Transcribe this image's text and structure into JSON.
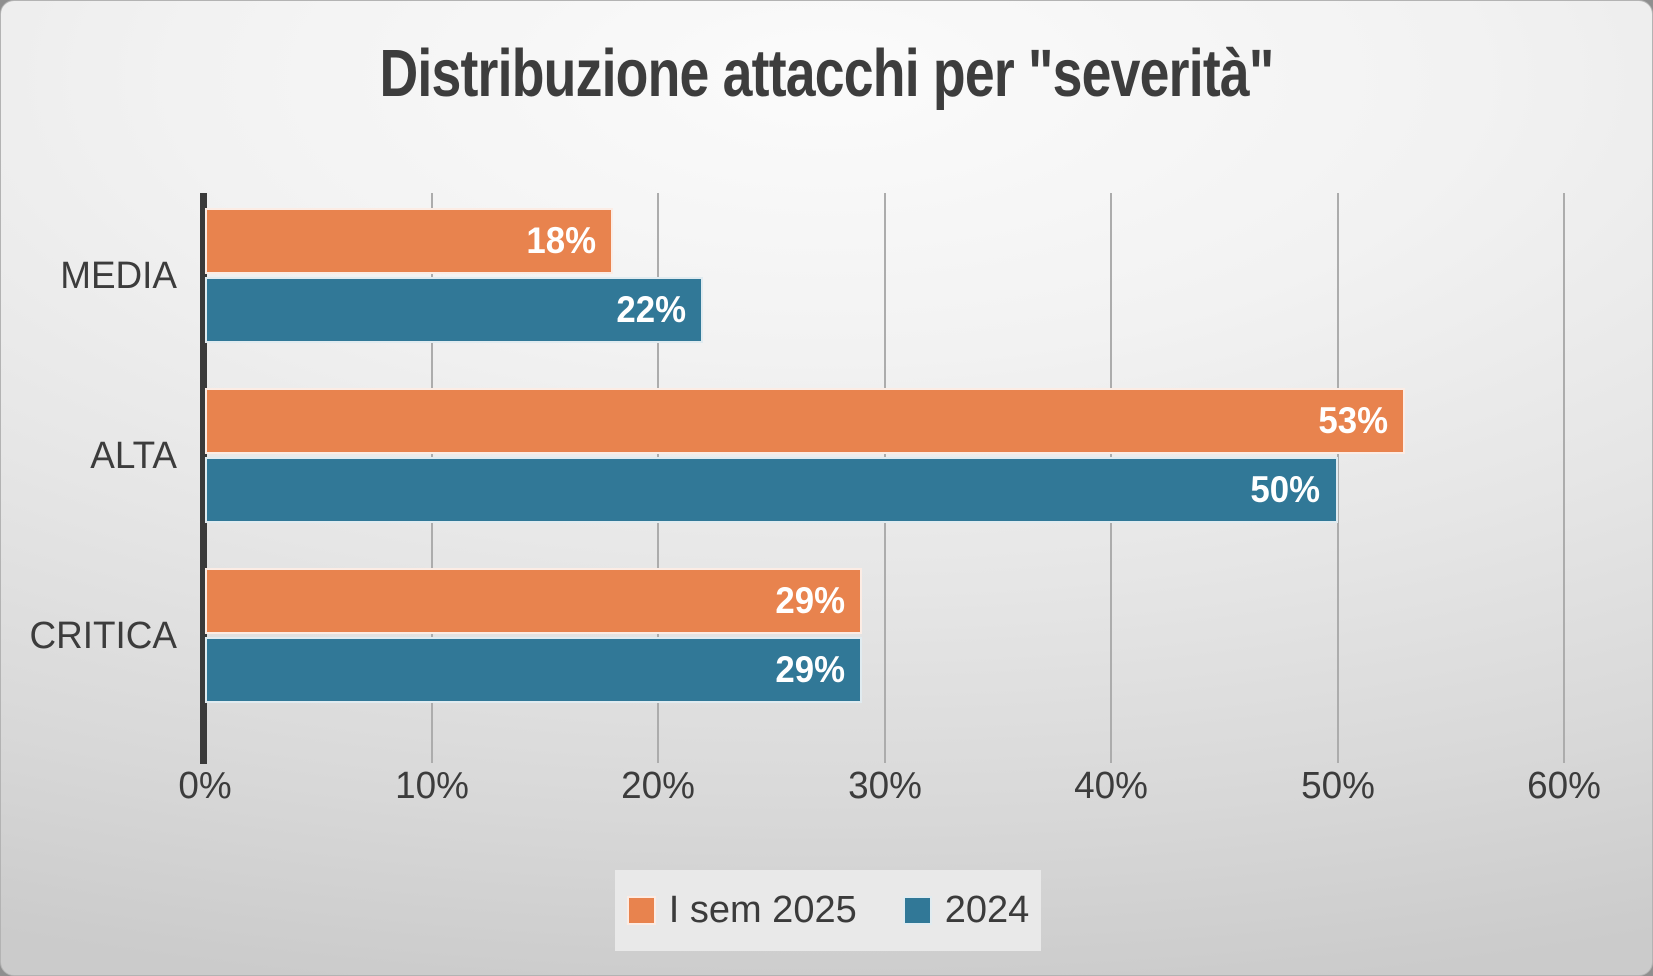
{
  "slide": {
    "title": "Distribuzione attacchi per \"severità\""
  },
  "chart_data": {
    "type": "bar",
    "orientation": "horizontal",
    "title": "Distribuzione attacchi per \"severità\"",
    "categories": [
      "MEDIA",
      "ALTA",
      "CRITICA"
    ],
    "series": [
      {
        "name": "I sem 2025",
        "color": "#E8834E",
        "values": [
          18,
          53,
          29
        ]
      },
      {
        "name": "2024",
        "color": "#317897",
        "values": [
          22,
          50,
          29
        ]
      }
    ],
    "data_labels": [
      [
        "18%",
        "53%",
        "29%"
      ],
      [
        "22%",
        "50%",
        "29%"
      ]
    ],
    "xlabel": "",
    "ylabel": "",
    "xlim": [
      0,
      60
    ],
    "x_ticks": [
      "0%",
      "10%",
      "20%",
      "30%",
      "40%",
      "50%",
      "60%"
    ],
    "grid": true,
    "legend_position": "bottom"
  },
  "colors": {
    "series_1": "#E8834E",
    "series_2": "#317897",
    "title_text": "#3d3d3d",
    "axis_text": "#3c3c3c",
    "data_label_text": "#ffffff",
    "gridline": "#acacac",
    "axis_line": "#3a3a3a",
    "legend_background": "#e9e9e9"
  }
}
